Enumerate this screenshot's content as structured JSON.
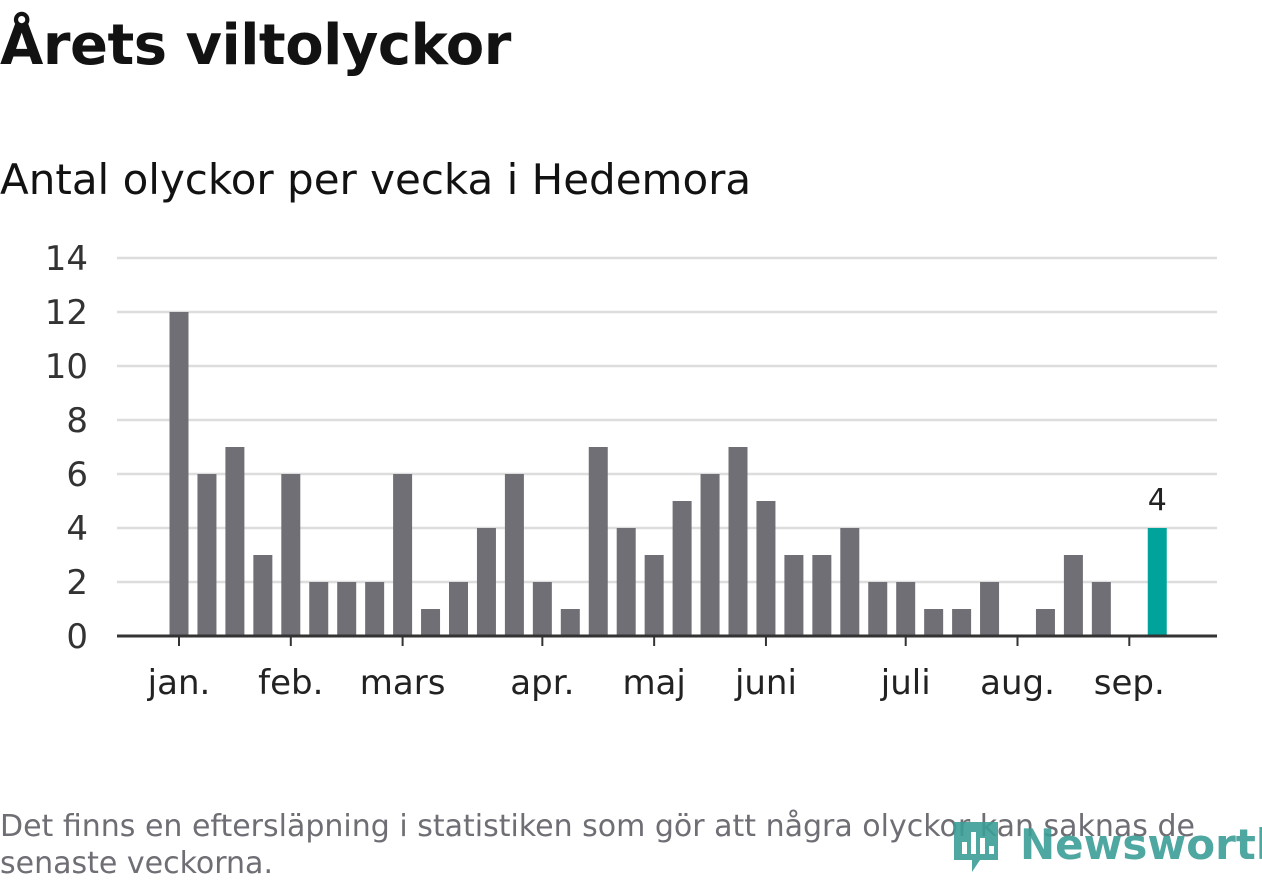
{
  "header": {
    "title": "Årets viltolyckor",
    "subtitle": "Antal olyckor per vecka i Hedemora"
  },
  "footnote": "Det finns en eftersläpning i statistiken som gör att några olyckor kan saknas de senaste veckorna.",
  "logo": {
    "text": "Newsworthy",
    "icon": "newsworthy-logo-icon"
  },
  "colors": {
    "bar": "#706f75",
    "highlight": "#00a39b",
    "grid": "#dddddd",
    "axis": "#333333"
  },
  "chart_data": {
    "type": "bar",
    "ylim": [
      0,
      14
    ],
    "yticks": [
      0,
      2,
      4,
      6,
      8,
      10,
      12,
      14
    ],
    "grid": true,
    "values": [
      12,
      6,
      7,
      3,
      6,
      2,
      2,
      2,
      6,
      1,
      2,
      4,
      6,
      2,
      1,
      7,
      4,
      3,
      5,
      6,
      7,
      5,
      3,
      3,
      4,
      2,
      2,
      1,
      1,
      2,
      0,
      1,
      3,
      2,
      0,
      4
    ],
    "month_labels": [
      {
        "label": "jan.",
        "at": 0
      },
      {
        "label": "feb.",
        "at": 4
      },
      {
        "label": "mars",
        "at": 8
      },
      {
        "label": "apr.",
        "at": 13
      },
      {
        "label": "maj",
        "at": 17
      },
      {
        "label": "juni",
        "at": 21
      },
      {
        "label": "juli",
        "at": 26
      },
      {
        "label": "aug.",
        "at": 30
      },
      {
        "label": "sep.",
        "at": 34
      }
    ],
    "highlight_index": 35,
    "highlight_label": "4"
  }
}
